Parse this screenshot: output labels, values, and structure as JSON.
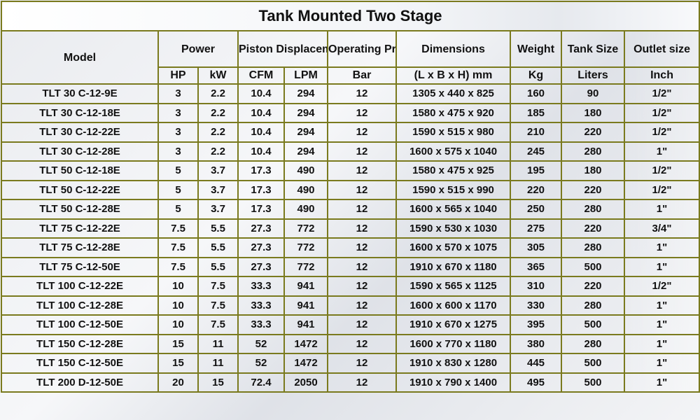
{
  "title": "Tank Mounted Two Stage",
  "headers": {
    "model": "Model",
    "power": "Power",
    "piston": "Piston Displacement",
    "pressure": "Operating Pressure",
    "dimensions": "Dimensions",
    "weight": "Weight",
    "tank": "Tank Size",
    "outlet": "Outlet size"
  },
  "subheaders": {
    "hp": "HP",
    "kw": "kW",
    "cfm": "CFM",
    "lpm": "LPM",
    "bar": "Bar",
    "dims": "(L x B x H) mm",
    "kg": "Kg",
    "liters": "Liters",
    "inch": "Inch"
  },
  "rows": [
    {
      "model": "TLT 30 C-12-9E",
      "hp": "3",
      "kw": "2.2",
      "cfm": "10.4",
      "lpm": "294",
      "bar": "12",
      "dims": "1305 x 440 x 825",
      "kg": "160",
      "liters": "90",
      "inch": "1/2\""
    },
    {
      "model": "TLT 30 C-12-18E",
      "hp": "3",
      "kw": "2.2",
      "cfm": "10.4",
      "lpm": "294",
      "bar": "12",
      "dims": "1580 x 475 x 920",
      "kg": "185",
      "liters": "180",
      "inch": "1/2\""
    },
    {
      "model": "TLT 30 C-12-22E",
      "hp": "3",
      "kw": "2.2",
      "cfm": "10.4",
      "lpm": "294",
      "bar": "12",
      "dims": "1590 x 515 x 980",
      "kg": "210",
      "liters": "220",
      "inch": "1/2\""
    },
    {
      "model": "TLT 30 C-12-28E",
      "hp": "3",
      "kw": "2.2",
      "cfm": "10.4",
      "lpm": "294",
      "bar": "12",
      "dims": "1600 x 575 x 1040",
      "kg": "245",
      "liters": "280",
      "inch": "1\""
    },
    {
      "model": "TLT 50 C-12-18E",
      "hp": "5",
      "kw": "3.7",
      "cfm": "17.3",
      "lpm": "490",
      "bar": "12",
      "dims": "1580 x 475 x 925",
      "kg": "195",
      "liters": "180",
      "inch": "1/2\""
    },
    {
      "model": "TLT 50 C-12-22E",
      "hp": "5",
      "kw": "3.7",
      "cfm": "17.3",
      "lpm": "490",
      "bar": "12",
      "dims": "1590 x 515 x 990",
      "kg": "220",
      "liters": "220",
      "inch": "1/2\""
    },
    {
      "model": "TLT 50 C-12-28E",
      "hp": "5",
      "kw": "3.7",
      "cfm": "17.3",
      "lpm": "490",
      "bar": "12",
      "dims": "1600 x 565 x 1040",
      "kg": "250",
      "liters": "280",
      "inch": "1\""
    },
    {
      "model": "TLT 75 C-12-22E",
      "hp": "7.5",
      "kw": "5.5",
      "cfm": "27.3",
      "lpm": "772",
      "bar": "12",
      "dims": "1590 x 530 x 1030",
      "kg": "275",
      "liters": "220",
      "inch": "3/4\""
    },
    {
      "model": "TLT 75 C-12-28E",
      "hp": "7.5",
      "kw": "5.5",
      "cfm": "27.3",
      "lpm": "772",
      "bar": "12",
      "dims": "1600 x 570 x 1075",
      "kg": "305",
      "liters": "280",
      "inch": "1\""
    },
    {
      "model": "TLT 75 C-12-50E",
      "hp": "7.5",
      "kw": "5.5",
      "cfm": "27.3",
      "lpm": "772",
      "bar": "12",
      "dims": "1910 x 670 x 1180",
      "kg": "365",
      "liters": "500",
      "inch": "1\""
    },
    {
      "model": "TLT 100 C-12-22E",
      "hp": "10",
      "kw": "7.5",
      "cfm": "33.3",
      "lpm": "941",
      "bar": "12",
      "dims": "1590 x 565 x 1125",
      "kg": "310",
      "liters": "220",
      "inch": "1/2\""
    },
    {
      "model": "TLT 100 C-12-28E",
      "hp": "10",
      "kw": "7.5",
      "cfm": "33.3",
      "lpm": "941",
      "bar": "12",
      "dims": "1600 x 600 x 1170",
      "kg": "330",
      "liters": "280",
      "inch": "1\""
    },
    {
      "model": "TLT 100 C-12-50E",
      "hp": "10",
      "kw": "7.5",
      "cfm": "33.3",
      "lpm": "941",
      "bar": "12",
      "dims": "1910 x 670 x 1275",
      "kg": "395",
      "liters": "500",
      "inch": "1\""
    },
    {
      "model": "TLT 150 C-12-28E",
      "hp": "15",
      "kw": "11",
      "cfm": "52",
      "lpm": "1472",
      "bar": "12",
      "dims": "1600 x 770 x 1180",
      "kg": "380",
      "liters": "280",
      "inch": "1\""
    },
    {
      "model": "TLT 150 C-12-50E",
      "hp": "15",
      "kw": "11",
      "cfm": "52",
      "lpm": "1472",
      "bar": "12",
      "dims": "1910 x 830 x 1280",
      "kg": "445",
      "liters": "500",
      "inch": "1\""
    },
    {
      "model": "TLT 200 D-12-50E",
      "hp": "20",
      "kw": "15",
      "cfm": "72.4",
      "lpm": "2050",
      "bar": "12",
      "dims": "1910 x 790 x 1400",
      "kg": "495",
      "liters": "500",
      "inch": "1\""
    }
  ]
}
